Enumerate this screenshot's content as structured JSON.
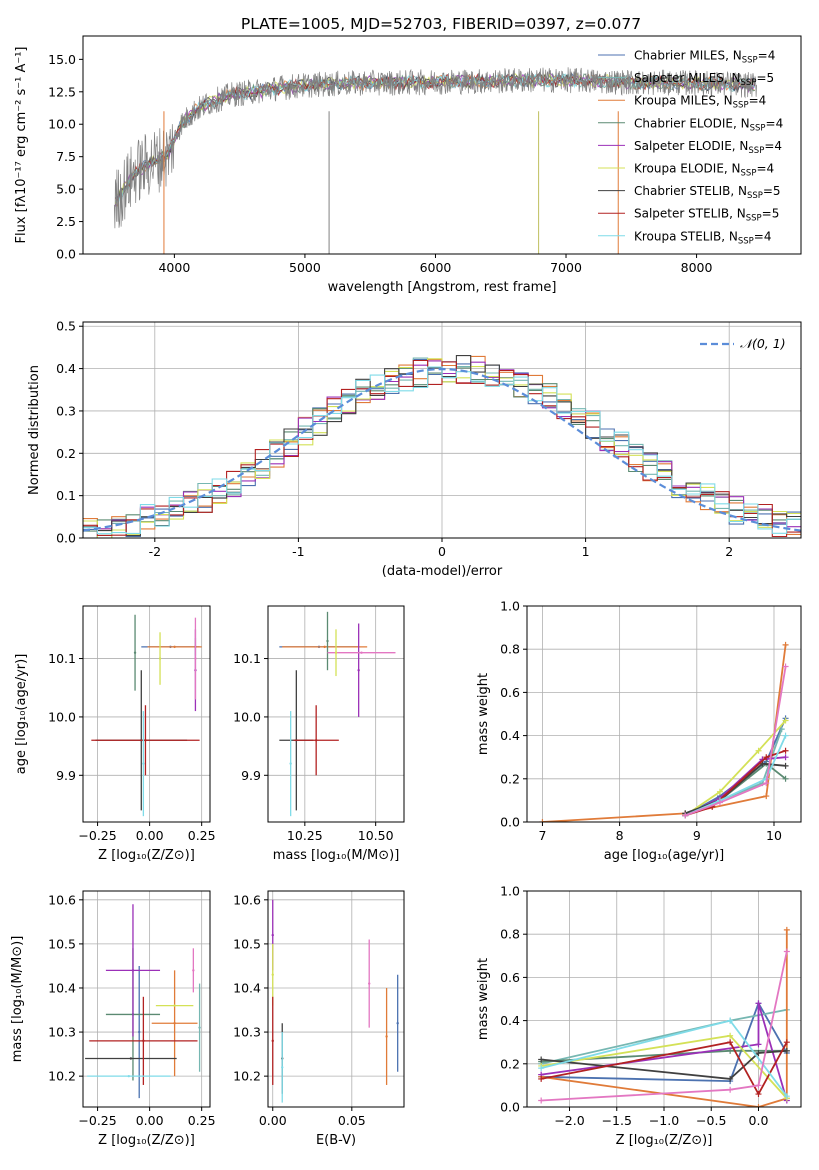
{
  "figure": {
    "title": "PLATE=1005, MJD=52703, FIBERID=0397, z=0.077"
  },
  "chart_data": [
    {
      "id": "spectrum",
      "type": "line",
      "xlabel": "wavelength [Angstrom, rest frame]",
      "ylabel": "Flux [fλ10⁻¹⁷ erg cm⁻² s⁻¹ A⁻¹]",
      "xlim": [
        3300,
        8800
      ],
      "ylim": [
        0,
        16.8
      ],
      "xticks": [
        4000,
        5000,
        6000,
        7000,
        8000
      ],
      "yticks": [
        0.0,
        2.5,
        5.0,
        7.5,
        10.0,
        12.5,
        15.0
      ],
      "legend_position": "right",
      "continuum": {
        "x": [
          3550,
          3700,
          3850,
          3950,
          4050,
          4150,
          4300,
          4450,
          4600,
          4800,
          5000,
          5200,
          5500,
          5800,
          6100,
          6400,
          6700,
          7000,
          7300,
          7600,
          7900,
          8200,
          8450
        ],
        "y": [
          4.0,
          6.3,
          7.2,
          7.6,
          10.0,
          11.0,
          11.8,
          12.3,
          12.5,
          12.8,
          13.0,
          13.1,
          13.2,
          13.2,
          13.3,
          13.3,
          13.4,
          13.4,
          13.3,
          13.2,
          13.2,
          13.1,
          13.0
        ]
      },
      "series": [
        {
          "name": "Chabrier MILES, N_SSP=4",
          "color": "#4c72b0"
        },
        {
          "name": "Salpeter MILES, N_SSP=5",
          "color": "#76b7b2"
        },
        {
          "name": "Kroupa MILES, N_SSP=4",
          "color": "#e07b39"
        },
        {
          "name": "Chabrier ELODIE, N_SSP=4",
          "color": "#5b8a72"
        },
        {
          "name": "Salpeter ELODIE, N_SSP=4",
          "color": "#9b30b8"
        },
        {
          "name": "Kroupa ELODIE, N_SSP=4",
          "color": "#d4e157"
        },
        {
          "name": "Chabrier STELIB, N_SSP=5",
          "color": "#404040"
        },
        {
          "name": "Salpeter STELIB, N_SSP=5",
          "color": "#b22222"
        },
        {
          "name": "Kroupa STELIB, N_SSP=4",
          "color": "#7fdbe8"
        }
      ]
    },
    {
      "id": "residuals",
      "type": "line",
      "xlabel": "(data-model)/error",
      "ylabel": "Normed distribution",
      "xlim": [
        -2.5,
        2.5
      ],
      "ylim": [
        0,
        0.51
      ],
      "xticks": [
        -2,
        -1,
        0,
        1,
        2
      ],
      "yticks": [
        0.0,
        0.1,
        0.2,
        0.3,
        0.4,
        0.5
      ],
      "grid": true,
      "legend": "𝒩(0, 1)",
      "legend_position": "top-right",
      "bin_centers": [
        -2.45,
        -2.35,
        -2.25,
        -2.15,
        -2.05,
        -1.95,
        -1.85,
        -1.75,
        -1.65,
        -1.55,
        -1.45,
        -1.35,
        -1.25,
        -1.15,
        -1.05,
        -0.95,
        -0.85,
        -0.75,
        -0.65,
        -0.55,
        -0.45,
        -0.35,
        -0.25,
        -0.15,
        -0.05,
        0.05,
        0.15,
        0.25,
        0.35,
        0.45,
        0.55,
        0.65,
        0.75,
        0.85,
        0.95,
        1.05,
        1.15,
        1.25,
        1.35,
        1.45,
        1.55,
        1.65,
        1.75,
        1.85,
        1.95,
        2.05,
        2.15,
        2.25,
        2.35,
        2.45
      ],
      "base_density": [
        0.02,
        0.025,
        0.03,
        0.035,
        0.045,
        0.055,
        0.065,
        0.08,
        0.095,
        0.115,
        0.13,
        0.15,
        0.175,
        0.2,
        0.225,
        0.25,
        0.275,
        0.3,
        0.32,
        0.345,
        0.36,
        0.37,
        0.38,
        0.39,
        0.395,
        0.4,
        0.4,
        0.395,
        0.39,
        0.38,
        0.365,
        0.35,
        0.33,
        0.31,
        0.285,
        0.265,
        0.24,
        0.215,
        0.19,
        0.17,
        0.15,
        0.13,
        0.11,
        0.095,
        0.08,
        0.065,
        0.055,
        0.045,
        0.035,
        0.03
      ],
      "gaussian": {
        "mean": 0,
        "sigma": 1,
        "color": "#5b8dd9"
      }
    },
    {
      "id": "age-vs-Z",
      "type": "scatter",
      "xlabel": "Z [log₁₀(Z/Z⊙)]",
      "ylabel": "age  [log₁₀(age/yr)]",
      "xlim": [
        -0.32,
        0.29
      ],
      "ylim": [
        9.82,
        10.19
      ],
      "xticks": [
        -0.25,
        0.0,
        0.25
      ],
      "xticklabels": [
        "−0.25",
        "0.00",
        "0.25"
      ],
      "yticks": [
        9.9,
        10.0,
        10.1
      ],
      "grid": true,
      "points": [
        {
          "x": 0.1,
          "y": 10.12,
          "xerr": 0.14,
          "yerr": 0.0,
          "color": "#4c72b0"
        },
        {
          "x": 0.22,
          "y": 10.12,
          "xerr": 0.0,
          "yerr": 0.015,
          "color": "#76b7b2"
        },
        {
          "x": 0.12,
          "y": 10.12,
          "xerr": 0.13,
          "yerr": 0.0,
          "color": "#e07b39"
        },
        {
          "x": -0.07,
          "y": 10.11,
          "xerr": 0.0,
          "yerr": 0.065,
          "color": "#5b8a72"
        },
        {
          "x": 0.22,
          "y": 10.08,
          "xerr": 0.0,
          "yerr": 0.07,
          "color": "#9b30b8"
        },
        {
          "x": 0.05,
          "y": 10.1,
          "xerr": 0.0,
          "yerr": 0.045,
          "color": "#d4e157"
        },
        {
          "x": -0.04,
          "y": 9.96,
          "xerr": 0.22,
          "yerr": 0.12,
          "color": "#404040"
        },
        {
          "x": -0.02,
          "y": 9.96,
          "xerr": 0.26,
          "yerr": 0.06,
          "color": "#b22222"
        },
        {
          "x": -0.03,
          "y": 9.92,
          "xerr": 0.0,
          "yerr": 0.09,
          "color": "#7fdbe8"
        },
        {
          "x": 0.22,
          "y": 10.1,
          "xerr": 0.0,
          "yerr": 0.07,
          "color": "#e377c2"
        }
      ]
    },
    {
      "id": "age-vs-mass",
      "type": "scatter",
      "xlabel": "mass [log₁₀(M/M⊙)]",
      "xlim": [
        10.12,
        10.6
      ],
      "ylim": [
        9.82,
        10.19
      ],
      "xticks": [
        10.25,
        10.5
      ],
      "xticklabels": [
        "10.25",
        "10.50"
      ],
      "yticks": [
        9.9,
        10.0,
        10.1
      ],
      "grid": true,
      "points": [
        {
          "x": 10.3,
          "y": 10.12,
          "xerr": 0.14,
          "yerr": 0.0,
          "color": "#4c72b0"
        },
        {
          "x": 10.32,
          "y": 10.12,
          "xerr": 0.15,
          "yerr": 0.0,
          "color": "#e07b39"
        },
        {
          "x": 10.33,
          "y": 10.13,
          "xerr": 0.0,
          "yerr": 0.05,
          "color": "#5b8a72"
        },
        {
          "x": 10.44,
          "y": 10.08,
          "xerr": 0.0,
          "yerr": 0.08,
          "color": "#9b30b8"
        },
        {
          "x": 10.45,
          "y": 10.11,
          "xerr": 0.12,
          "yerr": 0.0,
          "color": "#e377c2"
        },
        {
          "x": 10.36,
          "y": 10.11,
          "xerr": 0.0,
          "yerr": 0.04,
          "color": "#d4e157"
        },
        {
          "x": 10.22,
          "y": 9.96,
          "xerr": 0.06,
          "yerr": 0.12,
          "color": "#404040"
        },
        {
          "x": 10.29,
          "y": 9.96,
          "xerr": 0.08,
          "yerr": 0.06,
          "color": "#b22222"
        },
        {
          "x": 10.2,
          "y": 9.92,
          "xerr": 0.0,
          "yerr": 0.09,
          "color": "#7fdbe8"
        }
      ]
    },
    {
      "id": "massweight-vs-age",
      "type": "line",
      "xlabel": "age  [log₁₀(age/yr)]",
      "ylabel": "mass weight",
      "xlim": [
        6.8,
        10.35
      ],
      "ylim": [
        0,
        1.0
      ],
      "xticks": [
        7,
        8,
        9,
        10
      ],
      "yticks": [
        0.0,
        0.2,
        0.4,
        0.6,
        0.8,
        1.0
      ],
      "grid": true,
      "series": [
        {
          "color": "#4c72b0",
          "x": [
            8.85,
            9.3,
            9.9,
            10.15
          ],
          "y": [
            0.03,
            0.12,
            0.28,
            0.48
          ]
        },
        {
          "color": "#76b7b2",
          "x": [
            8.85,
            9.3,
            9.85,
            10.1
          ],
          "y": [
            0.04,
            0.1,
            0.18,
            0.43
          ]
        },
        {
          "color": "#e07b39",
          "x": [
            7.0,
            8.85,
            9.9,
            10.15
          ],
          "y": [
            0.0,
            0.04,
            0.12,
            0.82
          ]
        },
        {
          "color": "#5b8a72",
          "x": [
            8.85,
            9.3,
            9.9,
            10.15
          ],
          "y": [
            0.03,
            0.1,
            0.27,
            0.2
          ]
        },
        {
          "color": "#9b30b8",
          "x": [
            8.85,
            9.3,
            9.85,
            10.15
          ],
          "y": [
            0.03,
            0.11,
            0.29,
            0.3
          ]
        },
        {
          "color": "#d4e157",
          "x": [
            8.85,
            9.3,
            9.8,
            10.15
          ],
          "y": [
            0.03,
            0.14,
            0.33,
            0.47
          ]
        },
        {
          "color": "#404040",
          "x": [
            8.85,
            9.3,
            9.85,
            10.15
          ],
          "y": [
            0.04,
            0.1,
            0.27,
            0.26
          ]
        },
        {
          "color": "#b22222",
          "x": [
            8.85,
            9.2,
            9.9,
            10.15
          ],
          "y": [
            0.03,
            0.07,
            0.3,
            0.33
          ]
        },
        {
          "color": "#7fdbe8",
          "x": [
            8.85,
            9.3,
            9.9,
            10.15
          ],
          "y": [
            0.03,
            0.1,
            0.2,
            0.4
          ]
        },
        {
          "color": "#e377c2",
          "x": [
            8.85,
            9.3,
            9.9,
            10.15
          ],
          "y": [
            0.03,
            0.09,
            0.18,
            0.72
          ]
        }
      ]
    },
    {
      "id": "mass-vs-Z",
      "type": "scatter",
      "xlabel": "Z [log₁₀(Z/Z⊙)]",
      "ylabel": "mass [log₁₀(M/M⊙)]",
      "xlim": [
        -0.32,
        0.29
      ],
      "ylim": [
        10.13,
        10.62
      ],
      "xticks": [
        -0.25,
        0.0,
        0.25
      ],
      "xticklabels": [
        "−0.25",
        "0.00",
        "0.25"
      ],
      "yticks": [
        10.2,
        10.3,
        10.4,
        10.5,
        10.6
      ],
      "grid": true,
      "points": [
        {
          "x": -0.05,
          "y": 10.3,
          "xerr": 0.0,
          "yerr": 0.15,
          "color": "#4c72b0"
        },
        {
          "x": 0.24,
          "y": 10.31,
          "xerr": 0.0,
          "yerr": 0.1,
          "color": "#76b7b2"
        },
        {
          "x": 0.12,
          "y": 10.32,
          "xerr": 0.11,
          "yerr": 0.12,
          "color": "#e07b39"
        },
        {
          "x": -0.08,
          "y": 10.34,
          "xerr": 0.13,
          "yerr": 0.15,
          "color": "#5b8a72"
        },
        {
          "x": -0.08,
          "y": 10.44,
          "xerr": 0.13,
          "yerr": 0.15,
          "color": "#9b30b8"
        },
        {
          "x": 0.12,
          "y": 10.36,
          "xerr": 0.09,
          "yerr": 0.0,
          "color": "#d4e157"
        },
        {
          "x": -0.09,
          "y": 10.24,
          "xerr": 0.22,
          "yerr": 0.0,
          "color": "#404040"
        },
        {
          "x": -0.03,
          "y": 10.28,
          "xerr": 0.26,
          "yerr": 0.1,
          "color": "#b22222"
        },
        {
          "x": -0.1,
          "y": 10.2,
          "xerr": 0.2,
          "yerr": 0.0,
          "color": "#7fdbe8"
        },
        {
          "x": 0.21,
          "y": 10.44,
          "xerr": 0.0,
          "yerr": 0.05,
          "color": "#e377c2"
        }
      ]
    },
    {
      "id": "mass-vs-ebv",
      "type": "scatter",
      "xlabel": "E(B-V)",
      "xlim": [
        -0.003,
        0.083
      ],
      "ylim": [
        10.13,
        10.62
      ],
      "xticks": [
        0.0,
        0.05
      ],
      "xticklabels": [
        "0.00",
        "0.05"
      ],
      "yticks": [
        10.2,
        10.3,
        10.4,
        10.5,
        10.6
      ],
      "grid": true,
      "points": [
        {
          "x": 0.0,
          "y": 10.52,
          "yerr": 0.08,
          "color": "#9b30b8"
        },
        {
          "x": 0.0,
          "y": 10.43,
          "yerr": 0.07,
          "color": "#d4e157"
        },
        {
          "x": 0.0,
          "y": 10.28,
          "yerr": 0.1,
          "color": "#b22222"
        },
        {
          "x": 0.006,
          "y": 10.24,
          "yerr": 0.08,
          "color": "#404040"
        },
        {
          "x": 0.006,
          "y": 10.22,
          "yerr": 0.08,
          "color": "#7fdbe8"
        },
        {
          "x": 0.061,
          "y": 10.41,
          "yerr": 0.1,
          "color": "#e377c2"
        },
        {
          "x": 0.072,
          "y": 10.29,
          "yerr": 0.11,
          "color": "#e07b39"
        },
        {
          "x": 0.079,
          "y": 10.32,
          "yerr": 0.11,
          "color": "#4c72b0"
        }
      ]
    },
    {
      "id": "massweight-vs-Z",
      "type": "line",
      "xlabel": "Z [log₁₀(Z/Z⊙)]",
      "ylabel": "mass weight",
      "xlim": [
        -2.45,
        0.45
      ],
      "ylim": [
        0,
        1.0
      ],
      "xticks": [
        -2.0,
        -1.5,
        -1.0,
        -0.5,
        0.0
      ],
      "xticklabels": [
        "−2.0",
        "−1.5",
        "−1.0",
        "−0.5",
        "0.0"
      ],
      "yticks": [
        0.0,
        0.2,
        0.4,
        0.6,
        0.8,
        1.0
      ],
      "grid": true,
      "series": [
        {
          "color": "#4c72b0",
          "x": [
            -2.3,
            -0.3,
            0.0,
            0.3
          ],
          "y": [
            0.14,
            0.12,
            0.48,
            0.25
          ]
        },
        {
          "color": "#76b7b2",
          "x": [
            -2.3,
            -0.3,
            0.3
          ],
          "y": [
            0.2,
            0.4,
            0.45
          ]
        },
        {
          "color": "#e07b39",
          "x": [
            -2.3,
            0.0,
            0.3,
            0.3
          ],
          "y": [
            0.14,
            0.0,
            0.04,
            0.82
          ]
        },
        {
          "color": "#5b8a72",
          "x": [
            -2.3,
            -0.3,
            0.3
          ],
          "y": [
            0.21,
            0.26,
            0.26
          ]
        },
        {
          "color": "#9b30b8",
          "x": [
            -2.3,
            0.0,
            0.0,
            0.3
          ],
          "y": [
            0.15,
            0.29,
            0.48,
            0.03
          ]
        },
        {
          "color": "#d4e157",
          "x": [
            -2.3,
            -0.3,
            0.3
          ],
          "y": [
            0.19,
            0.33,
            0.04
          ]
        },
        {
          "color": "#404040",
          "x": [
            -2.3,
            -0.3,
            0.0,
            0.3
          ],
          "y": [
            0.22,
            0.13,
            0.25,
            0.26
          ]
        },
        {
          "color": "#b22222",
          "x": [
            -2.3,
            -0.3,
            0.0,
            0.3
          ],
          "y": [
            0.13,
            0.3,
            0.06,
            0.3
          ]
        },
        {
          "color": "#7fdbe8",
          "x": [
            -2.3,
            -0.3,
            0.3
          ],
          "y": [
            0.18,
            0.4,
            0.05
          ]
        },
        {
          "color": "#e377c2",
          "x": [
            -2.3,
            -0.3,
            0.0,
            0.3
          ],
          "y": [
            0.03,
            0.08,
            0.1,
            0.72
          ]
        }
      ]
    }
  ]
}
